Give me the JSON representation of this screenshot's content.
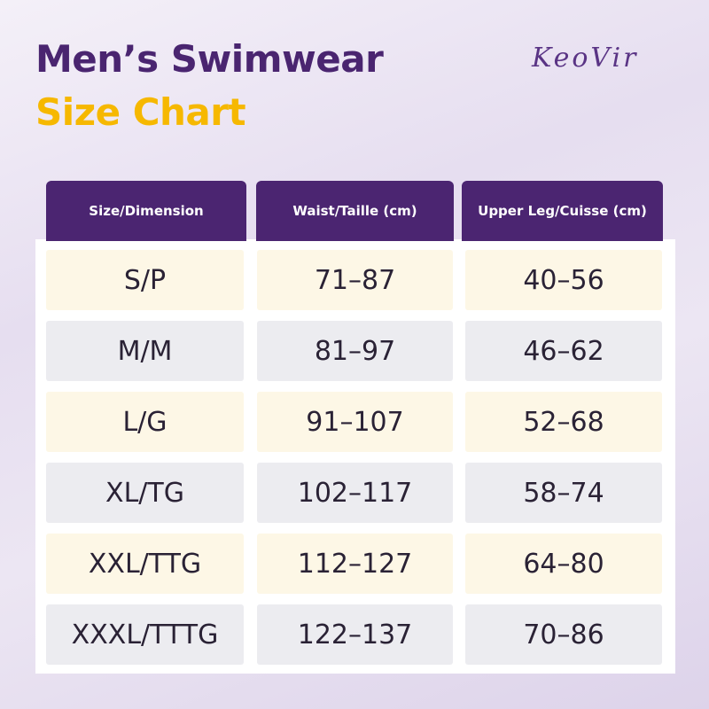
{
  "header": {
    "title": "Men’s Swimwear",
    "subtitle": "Size Chart",
    "brand": "KeoVir"
  },
  "table": {
    "columns": [
      "Size/Dimension",
      "Waist/Taille (cm)",
      "Upper Leg/Cuisse (cm)"
    ],
    "rows": [
      [
        "S/P",
        "71–87",
        "40–56"
      ],
      [
        "M/M",
        "81–97",
        "46–62"
      ],
      [
        "L/G",
        "91–107",
        "52–68"
      ],
      [
        "XL/TG",
        "102–117",
        "58–74"
      ],
      [
        "XXL/TTG",
        "112–127",
        "64–80"
      ],
      [
        "XXXL/TTTG",
        "122–137",
        "70–86"
      ]
    ]
  }
}
